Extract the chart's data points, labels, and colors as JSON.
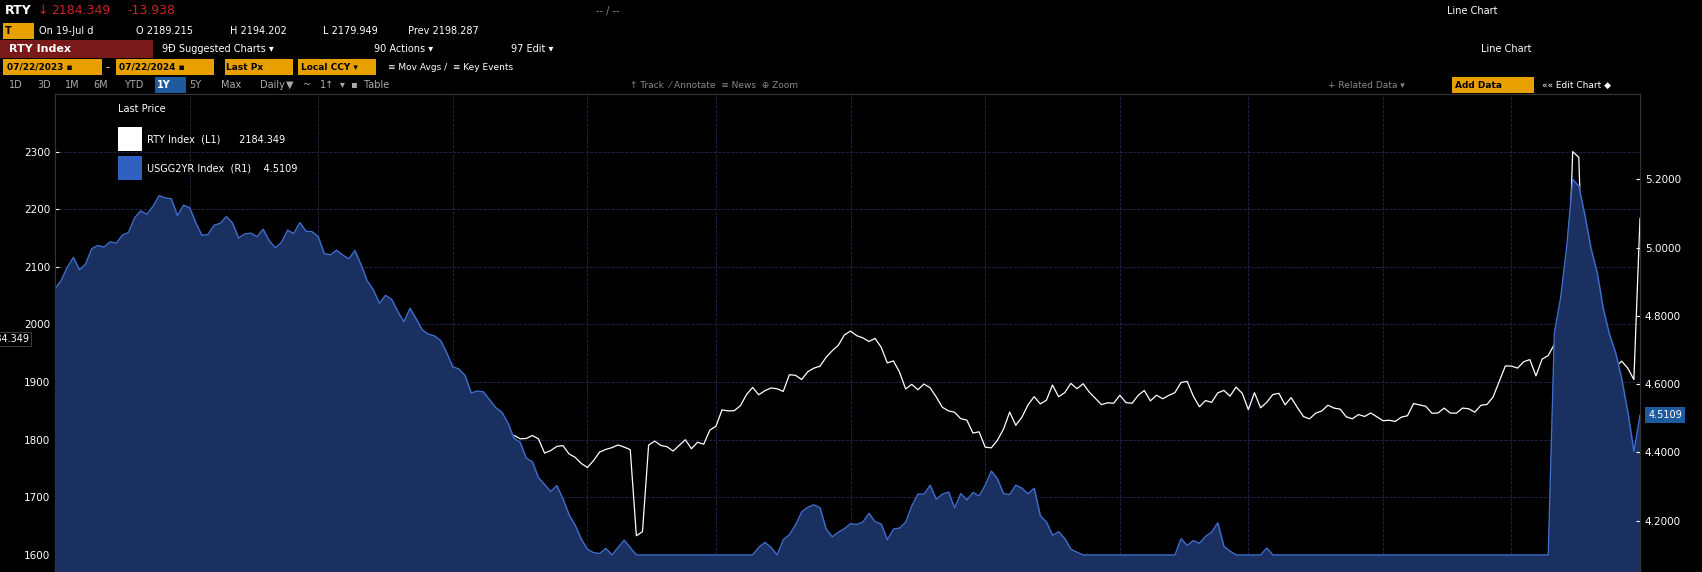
{
  "bg_color": "#000000",
  "dark_bg": "#0a0a14",
  "red_bar_color": "#7B1A1A",
  "gold_color": "#E8A000",
  "blue_button_color": "#1E5B9E",
  "blue_button2": "#2060B0",
  "rty_color": "#FFFFFF",
  "usgg_line_color": "#4070D0",
  "usgg_fill_color": "#1A3060",
  "grid_color": "#2a2a5a",
  "grid_style": "--",
  "left_yticks": [
    1600,
    1700,
    1800,
    1900,
    2000,
    2100,
    2200,
    2300
  ],
  "right_ytick_vals": [
    4.2,
    4.4,
    4.6,
    4.8,
    5.0,
    5.2
  ],
  "right_ytick_labels": [
    "4.2000",
    "4.4000",
    "4.6000",
    "4.8000",
    "5.0000",
    "5.2000"
  ],
  "left_ylim": [
    1570,
    2400
  ],
  "right_ylim": [
    4.05,
    5.45
  ],
  "n_points": 260
}
